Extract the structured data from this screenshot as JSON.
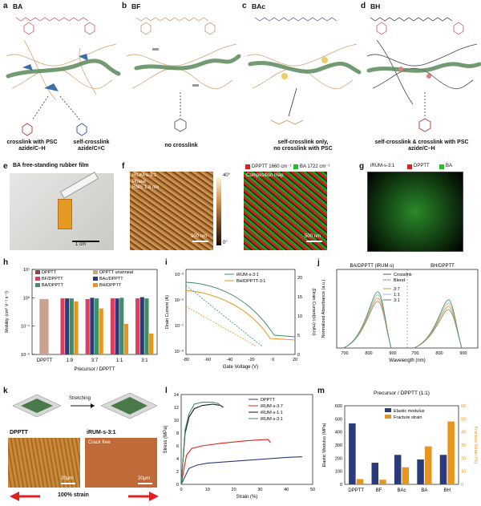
{
  "panels": {
    "a": {
      "letter": "a",
      "title": "BA",
      "caption1": "crosslink with PSC\nazide/C–H",
      "caption2": "self-crosslink\nazide/C=C"
    },
    "b": {
      "letter": "b",
      "title": "BF",
      "caption": "no crosslink"
    },
    "c": {
      "letter": "c",
      "title": "BAc",
      "caption": "self-crosslink only,\nno crosslink with PSC"
    },
    "d": {
      "letter": "d",
      "title": "BH",
      "caption": "self-crosslink & crosslink with PSC\nazide/C–H"
    },
    "e": {
      "letter": "e",
      "title": "BA free-standing rubber film",
      "scale": "1 cm"
    },
    "f": {
      "letter": "f",
      "phase_label": "iRUM-s-3:1",
      "phase_sub": "Phase",
      "rms": "RMS 1.8 nm",
      "colorbar_max": "40°",
      "colorbar_min": "0°",
      "scale1": "500 nm",
      "legend1": "DPPTT 1660 cm⁻¹",
      "legend2": "BA 1722 cm⁻¹",
      "comp_label": "Composition map",
      "scale2": "500 nm"
    },
    "g": {
      "letter": "g",
      "label": "iRUM-s-3:1",
      "legend1": "DPPTT",
      "legend2": "BA"
    },
    "h": {
      "letter": "h"
    },
    "i": {
      "letter": "i"
    },
    "j": {
      "letter": "j"
    },
    "k": {
      "letter": "k",
      "stretch_label": "Stretching",
      "left_label": "DPPTT",
      "right_label": "iRUM-s-3:1",
      "crack": "Crack free",
      "scale_left": "20μm",
      "scale_right": "20μm",
      "strain": "100% strain"
    },
    "l": {
      "letter": "l"
    },
    "m": {
      "letter": "m"
    }
  },
  "colors": {
    "dpptt": "#8b4a3a",
    "bf": "#e03d5d",
    "ba": "#3e8e66",
    "bac": "#2b3a7a",
    "bh": "#e8951e",
    "ba_blue": "#3a5fb8",
    "legend_red": "#e02020",
    "legend_green": "#22c022"
  },
  "chart_data": [
    {
      "id": "h",
      "type": "bar",
      "ylabel": "Mobility (cm² V⁻¹ s⁻¹)",
      "xlabel": "Precursor / DPPTT",
      "yscale": "log",
      "ylim": [
        0.01,
        10
      ],
      "yticks": [
        "10⁻²",
        "10⁻¹",
        "10⁰",
        "10¹"
      ],
      "categories": [
        "DPPTT",
        "1:9",
        "3:7",
        "1:1",
        "3:1"
      ],
      "legend": [
        "DPPTT",
        "DPPTT unanneal",
        "BF/DPPTT",
        "BAc/DPPTT",
        "BA/DPPTT",
        "BH/DPPTT"
      ],
      "series": [
        {
          "name": "DPPTT unanneal",
          "values": [
            0.9,
            null,
            null,
            null,
            null
          ]
        },
        {
          "name": "BF/DPPTT",
          "values": [
            null,
            0.95,
            0.9,
            0.95,
            0.95
          ]
        },
        {
          "name": "BAc/DPPTT",
          "values": [
            null,
            0.95,
            1.0,
            0.95,
            1.05
          ]
        },
        {
          "name": "BA/DPPTT",
          "values": [
            null,
            0.95,
            0.95,
            1.0,
            0.95
          ]
        },
        {
          "name": "BH/DPPTT",
          "values": [
            null,
            0.75,
            0.42,
            0.12,
            0.055
          ]
        }
      ]
    },
    {
      "id": "i",
      "type": "line",
      "xlabel": "Gate Voltage (V)",
      "ylabel": "Drain Current (A)",
      "ylabel_right": "(Drain Current)½ (mA½)",
      "xlim": [
        -80,
        20
      ],
      "xticks": [
        "-80",
        "-60",
        "-40",
        "-20",
        "0",
        "20"
      ],
      "yticks": [
        "10⁻³",
        "10⁻⁵",
        "10⁻⁷",
        "10⁻⁹"
      ],
      "yticks_right": [
        "0",
        "5",
        "10",
        "15",
        "20"
      ],
      "legend": [
        "iRUM-s-3:1",
        "BH/DPPTT-3:1"
      ]
    },
    {
      "id": "j",
      "type": "line",
      "xlabel": "Wavelength (nm)",
      "ylabel": "Normalized Absorbance (a.u.)",
      "left_title": "BA/DPPTT (iRUM-s)",
      "right_title": "BH/DPPTT",
      "xticks": [
        "700",
        "800",
        "900",
        "700",
        "800",
        "900"
      ],
      "legend": [
        "Crosslink",
        "Blend",
        "3:7",
        "1:1",
        "3:1"
      ]
    },
    {
      "id": "l",
      "type": "line",
      "xlabel": "Strain (%)",
      "ylabel": "Stress (MPa)",
      "xlim": [
        0,
        50
      ],
      "ylim": [
        0,
        14
      ],
      "xticks": [
        "0",
        "10",
        "20",
        "30",
        "40",
        "50"
      ],
      "yticks": [
        "0",
        "2",
        "4",
        "6",
        "8",
        "10",
        "12",
        "14"
      ],
      "legend": [
        "DPPTT",
        "iRUM-s-3:7",
        "iRUM-s-1:1",
        "iRUM-s-3:1"
      ],
      "series": [
        {
          "name": "DPPTT",
          "x": [
            0,
            3,
            6,
            10,
            20,
            30,
            40,
            46
          ],
          "y": [
            0,
            2.5,
            3.0,
            3.3,
            3.6,
            3.9,
            4.2,
            4.3
          ]
        },
        {
          "name": "iRUM-s-3:7",
          "x": [
            0,
            2,
            4,
            8,
            15,
            25,
            33,
            34
          ],
          "y": [
            0,
            4.5,
            5.6,
            6.0,
            6.4,
            6.8,
            7.0,
            6.5
          ]
        },
        {
          "name": "iRUM-s-1:1",
          "x": [
            0,
            1.5,
            3,
            5,
            8,
            12,
            15,
            16
          ],
          "y": [
            0,
            8,
            10.5,
            11.8,
            12.3,
            12.5,
            12.3,
            12.0
          ]
        },
        {
          "name": "iRUM-s-3:1",
          "x": [
            0,
            1.5,
            3,
            5,
            8,
            12,
            14,
            15
          ],
          "y": [
            0,
            8.5,
            11,
            12.5,
            12.8,
            12.8,
            12.6,
            12.3
          ]
        }
      ]
    },
    {
      "id": "m",
      "type": "bar",
      "title": "Precursor / DPPTT (1:1)",
      "ylabel": "Elastic Modulus (MPa)",
      "ylabel_right": "Fracture Strain (%)",
      "categories": [
        "DPPTT",
        "BF",
        "BAc",
        "BA",
        "BH"
      ],
      "ylim": [
        0,
        600
      ],
      "ylim_right": [
        0,
        60
      ],
      "yticks": [
        "0",
        "100",
        "200",
        "300",
        "400",
        "500",
        "600"
      ],
      "yticks_right": [
        "0",
        "10",
        "20",
        "30",
        "40",
        "50",
        "60"
      ],
      "legend": [
        "Elastic modulus",
        "Fracture strain"
      ],
      "series": [
        {
          "name": "Elastic modulus",
          "values": [
            465,
            165,
            225,
            190,
            225
          ]
        },
        {
          "name": "Fracture strain",
          "values": [
            4,
            3.5,
            13,
            29,
            48
          ]
        }
      ]
    }
  ]
}
